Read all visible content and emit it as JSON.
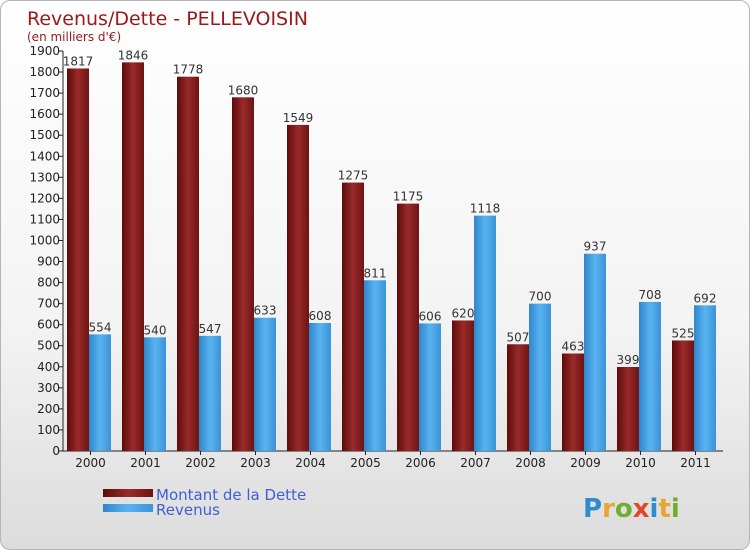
{
  "chart_data": {
    "type": "bar",
    "title": "Revenus/Dette - PELLEVOISIN",
    "subtitle": "(en milliers d'€)",
    "categories": [
      "2000",
      "2001",
      "2002",
      "2003",
      "2004",
      "2005",
      "2006",
      "2007",
      "2008",
      "2009",
      "2010",
      "2011"
    ],
    "series": [
      {
        "name": "Montant de la Dette",
        "color": "#8b1f1f",
        "values": [
          1817,
          1846,
          1778,
          1680,
          1549,
          1275,
          1175,
          620,
          507,
          463,
          399,
          525
        ]
      },
      {
        "name": "Revenus",
        "color": "#4aa3e6",
        "values": [
          554,
          540,
          547,
          633,
          608,
          811,
          606,
          1118,
          700,
          937,
          708,
          692
        ]
      }
    ],
    "ylim": [
      0,
      1900
    ],
    "ystep": 100,
    "grid": false,
    "legend": "bottom-left"
  },
  "brand": {
    "letters": [
      "P",
      "r",
      "o",
      "x",
      "i",
      "t",
      "i"
    ],
    "colors": [
      "#2e8bd0",
      "#e8a531",
      "#72ad2f",
      "#e0472b",
      "#2e8bd0",
      "#e8a531",
      "#72ad2f"
    ]
  }
}
